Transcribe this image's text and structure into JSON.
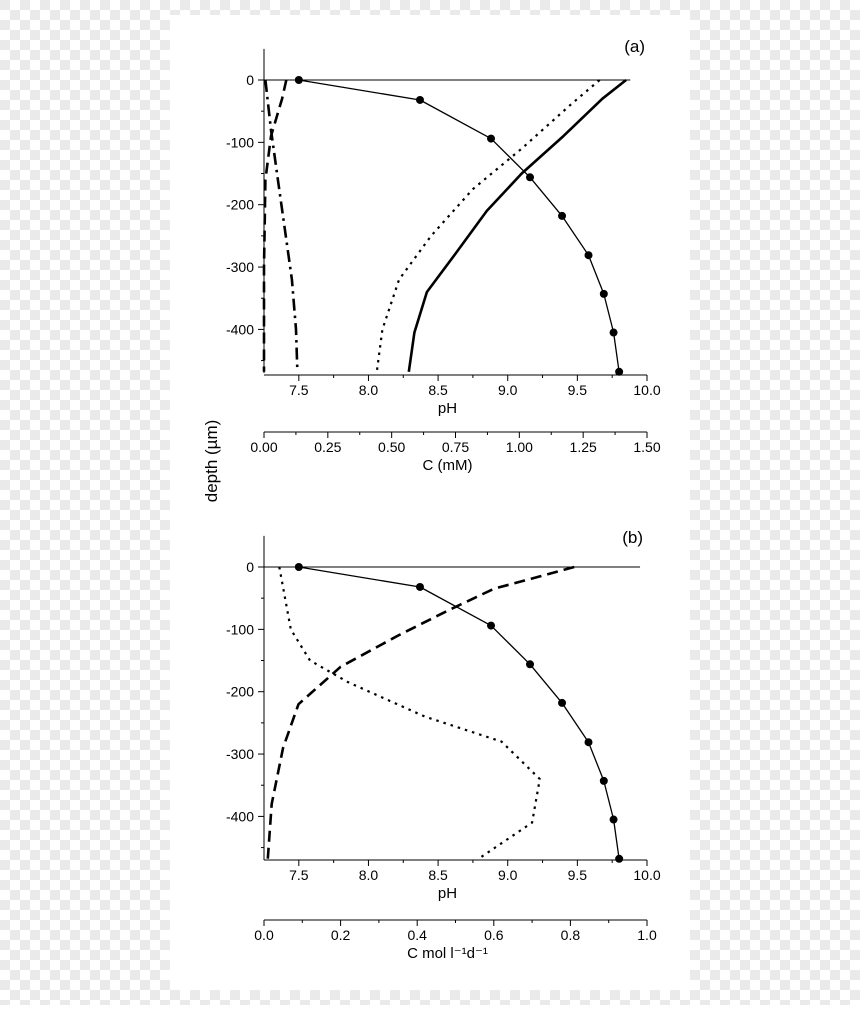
{
  "figure": {
    "shared_ylabel": "depth (µm)",
    "background_checker": true,
    "checker_colors": [
      "#ffffff",
      "#eaeaea"
    ]
  },
  "chart_data": [
    {
      "panel_label": "(a)",
      "type": "line",
      "ylabel": "depth (µm)",
      "ylim": [
        -470,
        50
      ],
      "yticks": [
        0,
        -100,
        -200,
        -300,
        -400
      ],
      "ytick_labels": [
        "0",
        "-100",
        "-200",
        "-300",
        "-400"
      ],
      "x_axes": [
        {
          "id": "pH",
          "label": "pH",
          "range": [
            7.25,
            10.0
          ],
          "ticks": [
            7.5,
            8.0,
            8.5,
            9.0,
            9.5,
            10.0
          ],
          "tick_labels": [
            "7.5",
            "8.0",
            "8.5",
            "9.0",
            "9.5",
            "10.0"
          ]
        },
        {
          "id": "C",
          "label": "C (mM)",
          "range": [
            0,
            1.5
          ],
          "ticks": [
            0,
            0.25,
            0.5,
            0.75,
            1.0,
            1.25,
            1.5
          ],
          "tick_labels": [
            "0.00",
            "0.25",
            "0.50",
            "0.75",
            "1.00",
            "1.25",
            "1.50"
          ]
        }
      ],
      "surface_line": {
        "y": 0,
        "x_end": 9.88,
        "axis": "pH"
      },
      "series": [
        {
          "axis": "pH",
          "style": "solid-markers",
          "x": [
            7.5,
            8.37,
            8.88,
            9.16,
            9.39,
            9.58,
            9.69,
            9.76,
            9.8
          ],
          "y": [
            0,
            -32,
            -94,
            -156,
            -218,
            -281,
            -343,
            -405,
            -468
          ]
        },
        {
          "axis": "pH",
          "style": "solid-thick",
          "x": [
            9.85,
            9.68,
            9.4,
            9.1,
            8.85,
            8.62,
            8.42,
            8.33,
            8.29
          ],
          "y": [
            0,
            -30,
            -90,
            -150,
            -210,
            -280,
            -340,
            -405,
            -468
          ]
        },
        {
          "axis": "pH",
          "style": "dotted",
          "x": [
            9.66,
            9.45,
            9.1,
            8.75,
            8.45,
            8.22,
            8.1,
            8.06
          ],
          "y": [
            0,
            -40,
            -110,
            -175,
            -250,
            -320,
            -400,
            -468
          ]
        },
        {
          "axis": "pH",
          "style": "dash-dot",
          "x": [
            7.26,
            7.3,
            7.35,
            7.4,
            7.45,
            7.48,
            7.49
          ],
          "y": [
            0,
            -80,
            -160,
            -240,
            -320,
            -400,
            -468
          ]
        },
        {
          "axis": "pH",
          "style": "dashed",
          "x": [
            7.41,
            7.38,
            7.3,
            7.26,
            7.25,
            7.25
          ],
          "y": [
            0,
            -30,
            -90,
            -160,
            -300,
            -468
          ]
        }
      ]
    },
    {
      "panel_label": "(b)",
      "type": "line",
      "ylabel": "depth (µm)",
      "ylim": [
        -470,
        50
      ],
      "yticks": [
        0,
        -100,
        -200,
        -300,
        -400
      ],
      "ytick_labels": [
        "0",
        "-100",
        "-200",
        "-300",
        "-400"
      ],
      "x_axes": [
        {
          "id": "pH",
          "label": "pH",
          "range": [
            7.25,
            10.0
          ],
          "ticks": [
            7.5,
            8.0,
            8.5,
            9.0,
            9.5,
            10.0
          ],
          "tick_labels": [
            "7.5",
            "8.0",
            "8.5",
            "9.0",
            "9.5",
            "10.0"
          ]
        },
        {
          "id": "C",
          "label": "C mol l⁻¹d⁻¹",
          "range": [
            0,
            1.0
          ],
          "ticks": [
            0,
            0.2,
            0.4,
            0.6,
            0.8,
            1.0
          ],
          "tick_labels": [
            "0.0",
            "0.2",
            "0.4",
            "0.6",
            "0.8",
            "1.0"
          ]
        }
      ],
      "surface_line": {
        "y": 0,
        "x_end": 9.95,
        "axis": "pH"
      },
      "series": [
        {
          "axis": "pH",
          "style": "solid-markers",
          "x": [
            7.5,
            8.37,
            8.88,
            9.16,
            9.39,
            9.58,
            9.69,
            9.76,
            9.8
          ],
          "y": [
            0,
            -32,
            -94,
            -156,
            -218,
            -281,
            -343,
            -405,
            -468
          ]
        },
        {
          "axis": "C",
          "style": "dashed",
          "x": [
            0.81,
            0.72,
            0.6,
            0.48,
            0.35,
            0.2,
            0.09,
            0.05,
            0.02,
            0.01
          ],
          "y": [
            0,
            -15,
            -35,
            -70,
            -110,
            -160,
            -220,
            -290,
            -380,
            -468
          ]
        },
        {
          "axis": "C",
          "style": "dotted",
          "x": [
            0.04,
            0.07,
            0.12,
            0.22,
            0.42,
            0.62,
            0.72,
            0.7,
            0.56
          ],
          "y": [
            0,
            -100,
            -150,
            -185,
            -240,
            -280,
            -340,
            -410,
            -468
          ]
        }
      ]
    }
  ]
}
